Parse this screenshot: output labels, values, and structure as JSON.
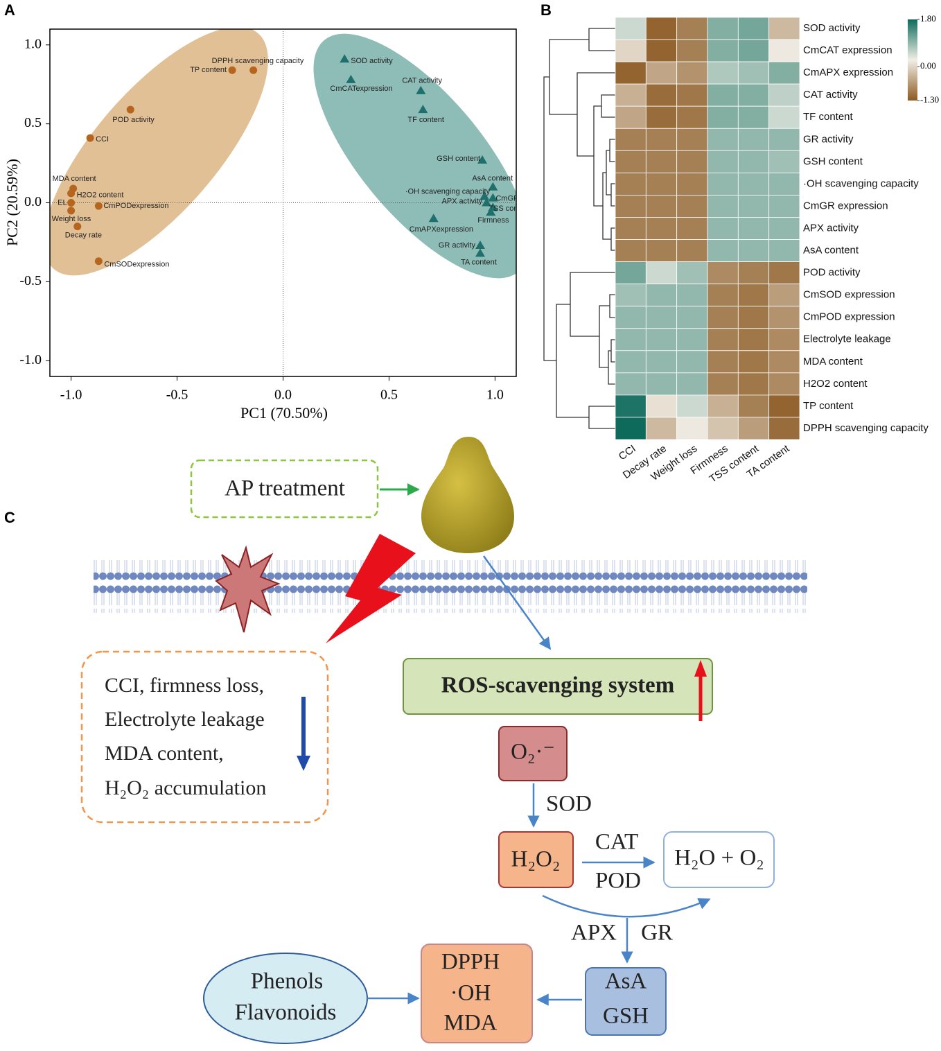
{
  "chart_data": [
    {
      "type": "scatter",
      "panel": "A",
      "xlabel": "PC1 (70.50%)",
      "ylabel": "PC2 (20.59%)",
      "xlim": [
        -1.1,
        1.1
      ],
      "ylim": [
        -1.1,
        1.1
      ],
      "xticks": [
        {
          "value": -1,
          "label": "-1.0"
        },
        {
          "value": -0.5,
          "label": "-0.5"
        },
        {
          "value": 0,
          "label": "0.0"
        },
        {
          "value": 0.5,
          "label": "0.5"
        },
        {
          "value": 1,
          "label": "1.0"
        }
      ],
      "yticks": [
        {
          "value": -1,
          "label": "-1.0"
        },
        {
          "value": -0.5,
          "label": "-0.5"
        },
        {
          "value": 0,
          "label": "0.0"
        },
        {
          "value": 0.5,
          "label": "0.5"
        },
        {
          "value": 1,
          "label": "1.0"
        }
      ],
      "series": [
        {
          "color": "#b5651d",
          "marker": "circle",
          "labels": [
            "DPPH scavenging capacity",
            "TP content",
            "POD activity",
            "CCI",
            "MDA content",
            "H2O2 content",
            "EL",
            "CmPODexpression",
            "Weight loss",
            "Decay rate",
            "CmSODexpression"
          ],
          "x": [
            -0.14,
            -0.24,
            -0.72,
            -0.91,
            -0.99,
            -1.0,
            -1.0,
            -0.87,
            -1.0,
            -0.97,
            -0.87
          ],
          "values": [
            0.84,
            0.84,
            0.59,
            0.41,
            0.09,
            0.06,
            0.0,
            -0.02,
            -0.05,
            -0.15,
            -0.37
          ]
        },
        {
          "color": "#1f6f6c",
          "marker": "triangle",
          "labels": [
            "SOD activity",
            "CmCATexpression",
            "CAT activity",
            "TF content",
            "GSH content",
            "AsA content",
            "·OH scavenging capacity",
            "CmGR",
            "APX activity",
            "TSS content",
            "Firmness",
            "CmAPXexpression",
            "GR activity",
            "TA content"
          ],
          "x": [
            0.29,
            0.32,
            0.65,
            0.66,
            0.94,
            0.99,
            0.95,
            0.99,
            0.96,
            0.99,
            0.98,
            0.71,
            0.93,
            0.93
          ],
          "values": [
            0.91,
            0.78,
            0.71,
            0.59,
            0.27,
            0.1,
            0.04,
            0.03,
            0.0,
            -0.03,
            -0.06,
            -0.1,
            -0.27,
            -0.32
          ]
        }
      ]
    },
    {
      "type": "heatmap",
      "panel": "B",
      "rows": [
        "SOD activity",
        "CmCAT expression",
        "CmAPX expression",
        "CAT activity",
        "TF content",
        "GR activity",
        "GSH content",
        "·OH scavenging capacity",
        "CmGR expression",
        "APX activity",
        "AsA content",
        "POD activity",
        "CmSOD expression",
        "CmPOD expression",
        "Electrolyte leakage",
        "MDA content",
        "H2O2 content",
        "TP content",
        "DPPH scavenging capacity"
      ],
      "columns": [
        "CCI",
        "Decay rate",
        "Weight loss",
        "Firmness",
        "TSS content",
        "TA content"
      ],
      "values": [
        [
          0.5,
          -1.2,
          -0.9,
          1.0,
          1.1,
          -0.3
        ],
        [
          0.0,
          -1.2,
          -0.9,
          1.0,
          1.1,
          0.2
        ],
        [
          -1.2,
          -0.5,
          -0.7,
          0.7,
          0.8,
          1.0
        ],
        [
          -0.4,
          -1.1,
          -1.0,
          1.0,
          1.0,
          0.6
        ],
        [
          -0.5,
          -1.1,
          -1.0,
          1.0,
          1.0,
          0.5
        ],
        [
          -0.9,
          -0.9,
          -0.9,
          0.9,
          0.9,
          0.9
        ],
        [
          -0.9,
          -0.9,
          -0.9,
          0.9,
          0.9,
          0.8
        ],
        [
          -0.9,
          -0.9,
          -0.9,
          0.9,
          0.9,
          0.9
        ],
        [
          -0.9,
          -0.9,
          -0.9,
          0.9,
          0.9,
          0.9
        ],
        [
          -0.9,
          -0.9,
          -0.9,
          0.9,
          0.9,
          0.9
        ],
        [
          -0.9,
          -0.9,
          -0.9,
          0.9,
          0.9,
          0.9
        ],
        [
          1.1,
          0.5,
          0.8,
          -0.8,
          -0.9,
          -1.0
        ],
        [
          0.8,
          0.9,
          0.9,
          -0.9,
          -1.0,
          -0.6
        ],
        [
          0.9,
          0.9,
          0.9,
          -0.9,
          -1.0,
          -0.7
        ],
        [
          0.9,
          0.9,
          0.9,
          -0.9,
          -1.0,
          -0.8
        ],
        [
          0.9,
          0.9,
          0.9,
          -0.9,
          -1.0,
          -0.8
        ],
        [
          0.9,
          0.9,
          0.9,
          -0.9,
          -1.0,
          -0.8
        ],
        [
          1.7,
          0.1,
          0.5,
          -0.4,
          -0.9,
          -1.2
        ],
        [
          1.8,
          -0.3,
          0.2,
          -0.2,
          -0.6,
          -1.1
        ]
      ],
      "zlim": [
        -1.3,
        1.8
      ],
      "colormap": [
        "#8c5a22",
        "#f1eee6",
        "#0e6b5c"
      ],
      "colorbar_ticks": [
        {
          "value": 1.8,
          "label": "1.80"
        },
        {
          "value": 0,
          "label": "0.00"
        },
        {
          "value": -1.3,
          "label": "-1.30"
        }
      ]
    }
  ],
  "diagram": {
    "panel": "C",
    "treatment": "AP treatment",
    "effects": [
      "CCI,  firmness loss,",
      "Electrolyte leakage",
      "MDA content,",
      "H₂O₂ accumulation"
    ],
    "system": "ROS-scavenging system",
    "superoxide": "O₂·⁻",
    "sod": "SOD",
    "peroxide": "H₂O₂",
    "cat": "CAT",
    "pod": "POD",
    "products": "H₂O + O₂",
    "apx": "APX",
    "gr": "GR",
    "antioxidants": [
      "AsA",
      "GSH"
    ],
    "targets": [
      "DPPH",
      "·OH",
      "MDA"
    ],
    "phenolics": [
      "Phenols",
      "Flavonoids"
    ]
  }
}
